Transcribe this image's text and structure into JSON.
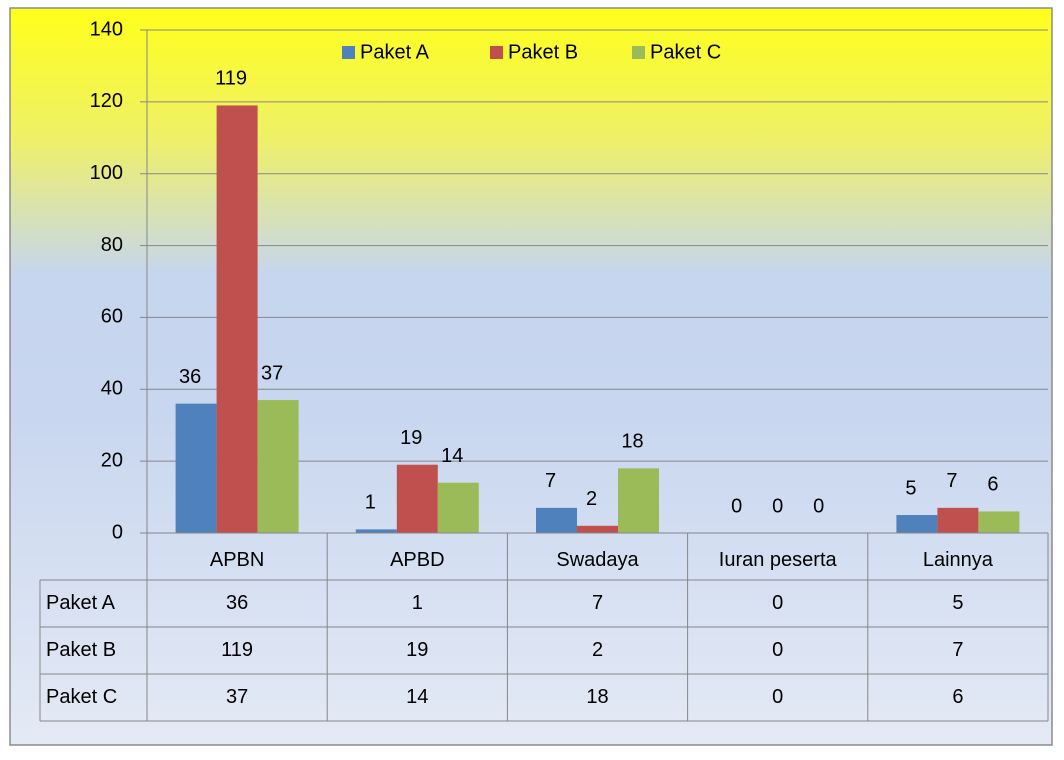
{
  "chart_data": {
    "type": "bar",
    "categories": [
      "APBN",
      "APBD",
      "Swadaya",
      "Iuran peserta",
      "Lainnya"
    ],
    "series": [
      {
        "name": "Paket A",
        "color": "#4f81bd",
        "values": [
          36,
          1,
          7,
          0,
          5
        ]
      },
      {
        "name": "Paket B",
        "color": "#c0504d",
        "values": [
          119,
          19,
          2,
          0,
          7
        ]
      },
      {
        "name": "Paket C",
        "color": "#9bbb59",
        "values": [
          37,
          14,
          18,
          0,
          6
        ]
      }
    ],
    "ylim": [
      0,
      140
    ],
    "yticks": [
      0,
      20,
      40,
      60,
      80,
      100,
      120,
      140
    ],
    "grid": true,
    "legend": "top",
    "data_table": true
  }
}
